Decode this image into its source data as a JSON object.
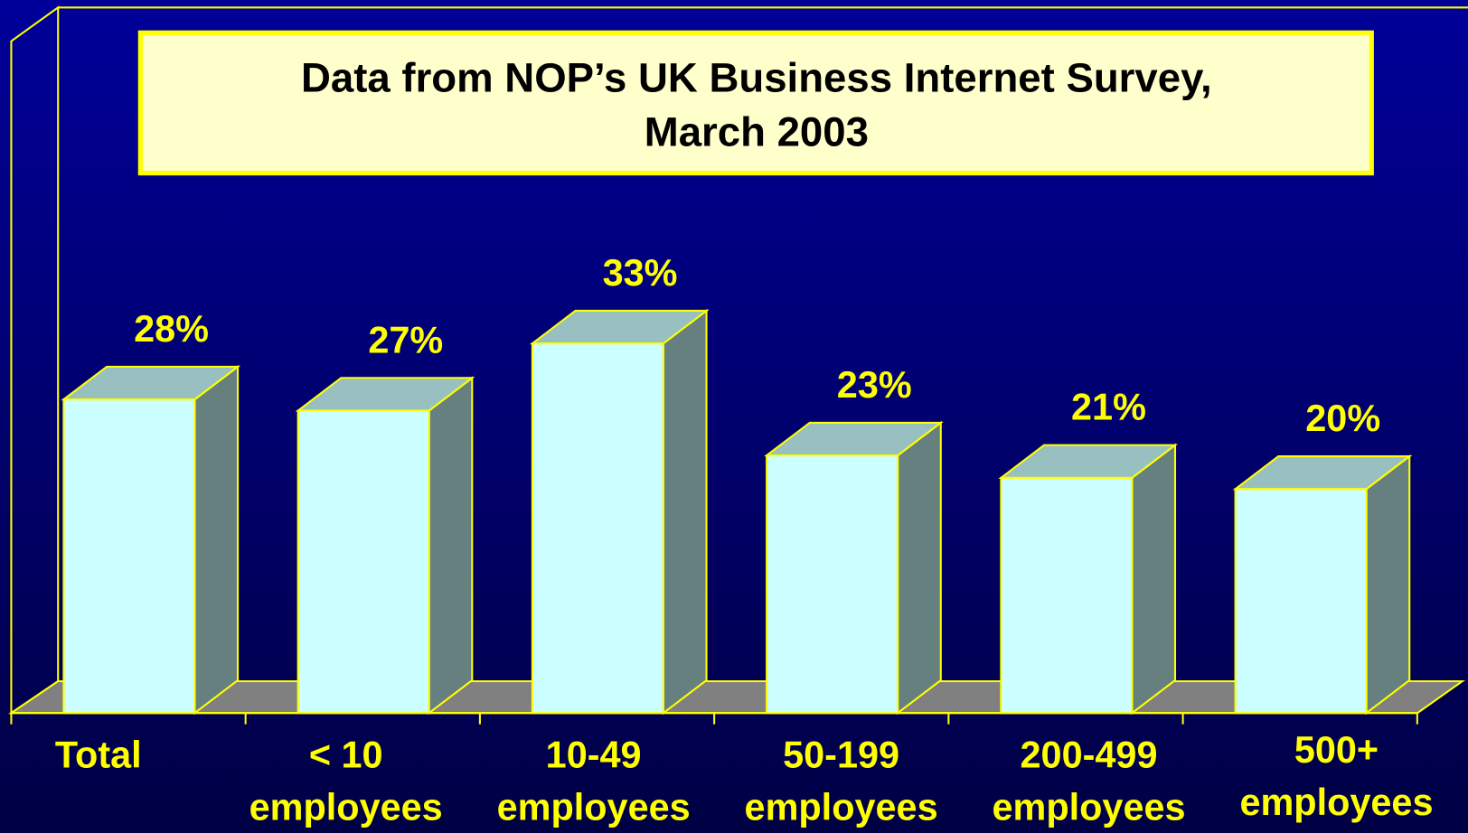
{
  "chart_data": {
    "type": "bar3d",
    "title": "Data from NOP’s UK Business Internet Survey,\nMarch 2003",
    "categories": [
      "Total",
      "< 10\nemployees",
      "10-49\nemployees",
      "50-199\nemployees",
      "200-499\nemployees",
      "500+\nemployees"
    ],
    "values": [
      28,
      27,
      33,
      23,
      21,
      20
    ],
    "value_labels": [
      "28%",
      "27%",
      "33%",
      "23%",
      "21%",
      "20%"
    ],
    "color": "#ccffff",
    "ylim": [
      0,
      63
    ]
  }
}
